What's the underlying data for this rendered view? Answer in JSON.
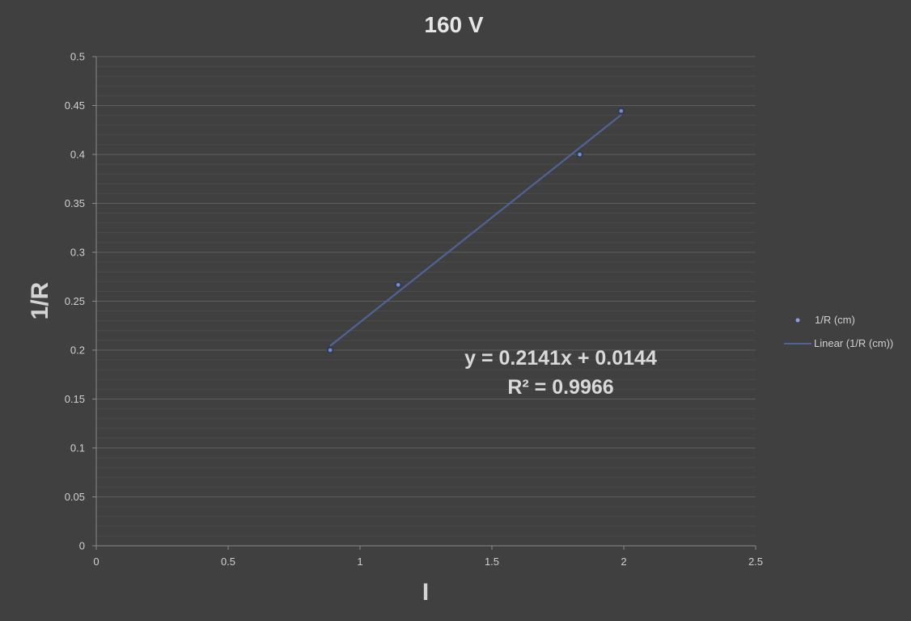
{
  "chart_data": {
    "type": "scatter",
    "title": "160 V",
    "xlabel": "I",
    "ylabel": "1/R",
    "xlim": [
      0,
      2.5
    ],
    "ylim": [
      0,
      0.5
    ],
    "x_ticks": [
      "0",
      "0.5",
      "1",
      "1.5",
      "2",
      "2.5"
    ],
    "y_ticks": [
      "0",
      "0.05",
      "0.1",
      "0.15",
      "0.2",
      "0.25",
      "0.3",
      "0.35",
      "0.4",
      "0.45",
      "0.5"
    ],
    "series": [
      {
        "name": "1/R (cm)",
        "x": [
          0.887,
          1.145,
          1.833,
          1.99
        ],
        "y": [
          0.2,
          0.2667,
          0.4,
          0.4444
        ],
        "color": "#6f8fd6"
      }
    ],
    "trendline": {
      "name": "Linear (1/R (cm))",
      "slope": 0.2141,
      "intercept": 0.0144,
      "x_range": [
        0.887,
        1.99
      ],
      "color": "#4f6496",
      "equation": "y = 0.2141x + 0.0144",
      "r_squared": "R² = 0.9966"
    },
    "grid": true,
    "minor_grid": true,
    "legend_position": "right"
  }
}
